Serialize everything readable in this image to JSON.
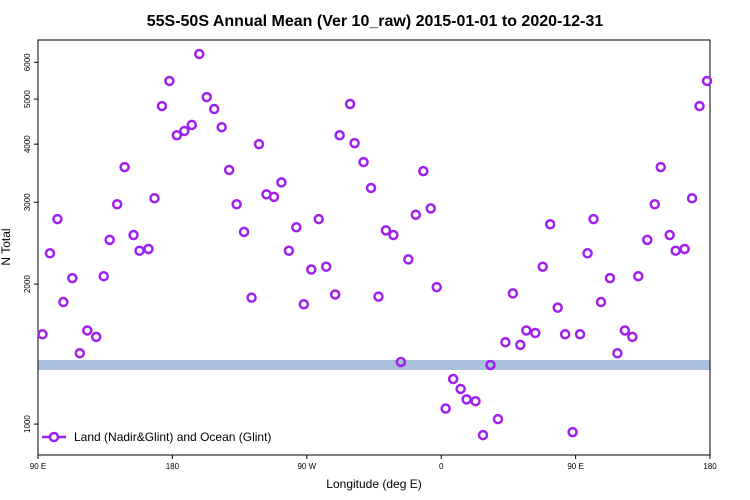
{
  "chart_data": {
    "type": "scatter",
    "title": "55S-50S Annual Mean (Ver 10_raw)   2015-01-01 to 2020-12-31",
    "x_label": "Longitude (deg E)",
    "y_label": "N Total",
    "log_y": true,
    "legend": "bottom-left",
    "xlim": [
      90,
      540
    ],
    "ylim": [
      858,
      6700
    ],
    "xticks": [
      {
        "value": 90,
        "label": "90 E"
      },
      {
        "value": 180,
        "label": "180"
      },
      {
        "value": 270,
        "label": "90 W"
      },
      {
        "value": 360,
        "label": "0"
      },
      {
        "value": 450,
        "label": "90 E"
      },
      {
        "value": 540,
        "label": "180"
      }
    ],
    "yticks": [
      1000,
      2000,
      3000,
      4000,
      5000,
      6000
    ],
    "series": [
      {
        "name": "Land (Nadir&Glint) and Ocean (Glint)",
        "color": "#a020f0",
        "x": [
          93,
          98,
          103,
          107,
          113,
          118,
          123,
          129,
          134,
          138,
          143,
          148,
          154,
          158,
          164,
          168,
          173,
          178,
          183,
          188,
          193,
          198,
          203,
          208,
          213,
          218,
          223,
          228,
          233,
          238,
          243,
          248,
          253,
          258,
          263,
          268,
          273,
          278,
          283,
          289,
          292,
          299,
          302,
          308,
          313,
          318,
          323,
          328,
          333,
          338,
          343,
          348,
          353,
          357,
          363,
          368,
          373,
          377,
          383,
          388,
          393,
          398,
          403,
          408,
          413,
          417,
          423,
          428,
          433,
          438,
          443,
          448,
          453,
          458,
          462,
          467,
          473,
          478,
          483,
          488,
          492,
          498,
          503,
          507,
          513,
          517,
          523,
          528,
          533,
          538
        ],
        "values": [
          1560,
          2330,
          2760,
          1830,
          2060,
          1420,
          1590,
          1540,
          2080,
          2490,
          2970,
          3570,
          2550,
          2360,
          2380,
          3060,
          4830,
          5470,
          4180,
          4270,
          4400,
          6250,
          5050,
          4760,
          4350,
          3520,
          2970,
          2590,
          1870,
          4000,
          3120,
          3080,
          3310,
          2360,
          2650,
          1810,
          2150,
          2760,
          2180,
          1900,
          4180,
          4880,
          4020,
          3660,
          3220,
          1880,
          2610,
          2550,
          1360,
          2260,
          2820,
          3500,
          2910,
          1970,
          1080,
          1250,
          1190,
          1130,
          1120,
          947,
          1340,
          1025,
          1500,
          1910,
          1480,
          1590,
          1570,
          2180,
          2690,
          1780,
          1560,
          961,
          1560,
          2330,
          2760,
          1830,
          2060,
          1420,
          1590,
          1540,
          2080,
          2490,
          2970,
          3570,
          2550,
          2360,
          2380,
          3060,
          4830,
          5470
        ]
      }
    ]
  }
}
